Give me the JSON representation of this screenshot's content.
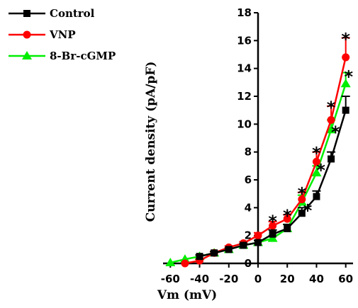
{
  "chart_data": {
    "type": "line",
    "xlabel": "Vm (mV)",
    "ylabel": "Current density (pA/pF)",
    "xlim": [
      -65,
      65
    ],
    "ylim": [
      0,
      18
    ],
    "xticks": [
      -60,
      -40,
      -20,
      0,
      20,
      40,
      60
    ],
    "yticks": [
      0,
      2,
      4,
      6,
      8,
      10,
      12,
      14,
      16,
      18
    ],
    "x": [
      -60,
      -50,
      -40,
      -30,
      -20,
      -10,
      0,
      10,
      20,
      30,
      40,
      50,
      60
    ],
    "legend_position": "top-left",
    "series": [
      {
        "name": "Control",
        "color": "#000000",
        "marker": "square",
        "values": [
          null,
          null,
          0.5,
          0.75,
          1.0,
          1.3,
          1.5,
          2.1,
          2.5,
          3.6,
          4.8,
          7.5,
          11.0
        ],
        "errors": [
          0,
          0,
          0.1,
          0.1,
          0.1,
          0.1,
          0.15,
          0.3,
          0.3,
          0.4,
          0.4,
          0.5,
          1.0
        ]
      },
      {
        "name": "VNP",
        "color": "#ff0000",
        "marker": "circle",
        "values": [
          null,
          0.0,
          0.2,
          0.75,
          1.15,
          1.45,
          2.0,
          2.7,
          3.2,
          4.6,
          7.3,
          10.3,
          14.8
        ],
        "errors": [
          0,
          0,
          0.1,
          0.1,
          0.1,
          0.1,
          0.2,
          0.3,
          0.3,
          0.5,
          0.7,
          1.0,
          1.4
        ]
      },
      {
        "name": "8-Br-cGMP",
        "color": "#00ee00",
        "marker": "triangle",
        "values": [
          0.05,
          0.3,
          0.5,
          0.75,
          1.0,
          1.3,
          1.5,
          1.8,
          2.5,
          4.4,
          6.5,
          9.6,
          12.9
        ],
        "errors": [
          0,
          0,
          0.1,
          0.1,
          0.1,
          0.1,
          0.15,
          0.2,
          0.3,
          0.5,
          0.5,
          0.7,
          0.8
        ]
      }
    ],
    "annotations": [
      {
        "text": "*",
        "x": 10,
        "y": 3.2
      },
      {
        "text": "*",
        "x": 20,
        "y": 3.6
      },
      {
        "text": "*",
        "x": 30,
        "y": 5.2
      },
      {
        "text": "*",
        "x": 40,
        "y": 8.1
      },
      {
        "text": "*",
        "x": 50,
        "y": 11.4
      },
      {
        "text": "*",
        "x": 60,
        "y": 16.3
      },
      {
        "text": "*",
        "x": 34,
        "y": 4.0
      },
      {
        "text": "*",
        "x": 43,
        "y": 6.9
      },
      {
        "text": "*",
        "x": 53,
        "y": 9.6
      },
      {
        "text": "*",
        "x": 62,
        "y": 13.6
      }
    ]
  }
}
